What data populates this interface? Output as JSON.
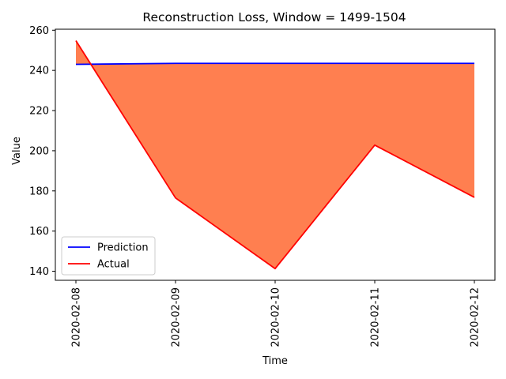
{
  "chart_data": {
    "type": "line",
    "title": "Reconstruction Loss, Window = 1499-1504",
    "xlabel": "Time",
    "ylabel": "Value",
    "categories": [
      "2020-02-08",
      "2020-02-09",
      "2020-02-10",
      "2020-02-11",
      "2020-02-12"
    ],
    "ylim": [
      135.5,
      260.5
    ],
    "yticks": [
      140,
      160,
      180,
      200,
      220,
      240,
      260
    ],
    "series": [
      {
        "name": "Prediction",
        "color": "#0000ff",
        "values": [
          243.0,
          243.5,
          243.5,
          243.5,
          243.5
        ]
      },
      {
        "name": "Actual",
        "color": "#ff0000",
        "values": [
          254.8,
          176.5,
          141.3,
          202.8,
          176.8
        ]
      }
    ],
    "fill_between": {
      "color": "#ff7f50",
      "between": [
        "Prediction",
        "Actual"
      ]
    },
    "legend": {
      "placement": "lower-left"
    },
    "grid": false
  }
}
